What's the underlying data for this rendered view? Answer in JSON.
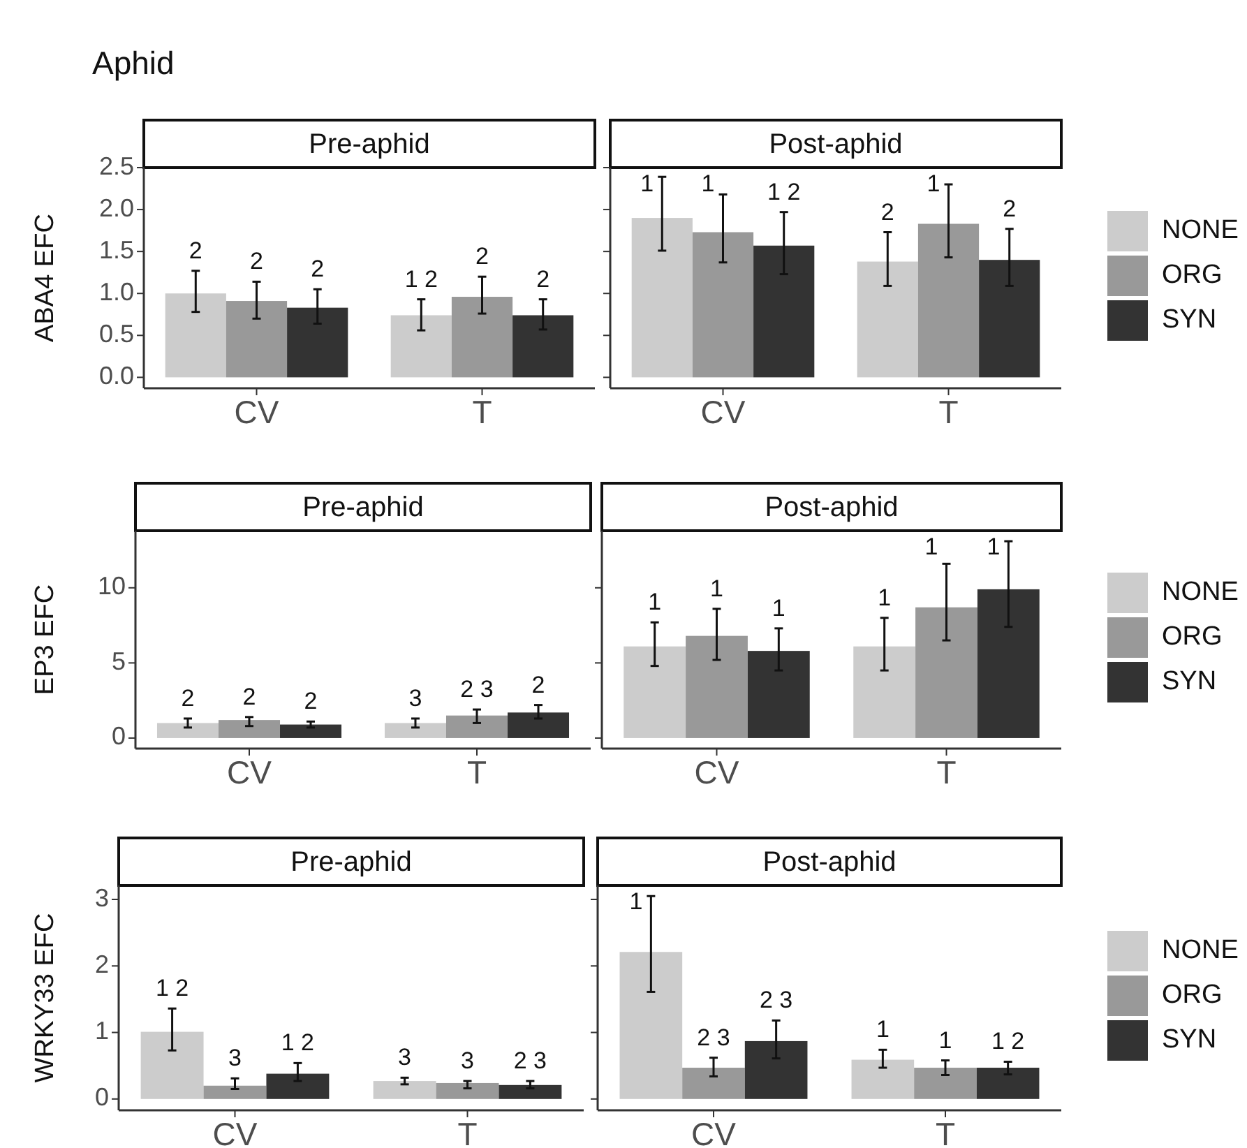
{
  "chart_data": [
    {
      "type": "bar",
      "title": "Aphid",
      "subtitle": "Pre-aphid",
      "ylabel": "ABA4 EFC",
      "categories": [
        "CV",
        "T"
      ],
      "ylim": [
        -0.13,
        2.5
      ],
      "yticks": [
        {
          "value": 0,
          "label": "0.0"
        },
        {
          "value": 0.5,
          "label": "0.5"
        },
        {
          "value": 1,
          "label": "1.0"
        },
        {
          "value": 1.5,
          "label": "1.5"
        },
        {
          "value": 2,
          "label": "2.0"
        },
        {
          "value": 2.5,
          "label": "2.5"
        }
      ],
      "legend": false,
      "series": [
        {
          "color": "#cccccc",
          "values": [
            1.0,
            0.74
          ],
          "errors": [
            [
              0.78,
              1.27
            ],
            [
              0.56,
              0.93
            ]
          ]
        },
        {
          "color": "#999999",
          "values": [
            0.91,
            0.96
          ],
          "errors": [
            [
              0.7,
              1.14
            ],
            [
              0.76,
              1.2
            ]
          ]
        },
        {
          "color": "#333333",
          "values": [
            0.83,
            0.74
          ],
          "errors": [
            [
              0.64,
              1.05
            ],
            [
              0.57,
              0.93
            ]
          ]
        }
      ],
      "annotations": [
        "2",
        "2",
        "2",
        "1 2",
        "2",
        "2"
      ]
    },
    {
      "type": "bar",
      "subtitle": "Post-aphid",
      "categories": [
        "CV",
        "T"
      ],
      "ylim": [
        -0.13,
        2.5
      ],
      "yticks": [
        {
          "value": 0,
          "label": null
        },
        {
          "value": 0.5,
          "label": null
        },
        {
          "value": 1,
          "label": null
        },
        {
          "value": 1.5,
          "label": null
        },
        {
          "value": 2,
          "label": null
        },
        {
          "value": 2.5,
          "label": null
        }
      ],
      "tick_labels": "x",
      "legend": "right",
      "series": [
        {
          "name": "NONE",
          "color": "#cccccc",
          "values": [
            1.9,
            1.38
          ],
          "errors": [
            [
              1.51,
              2.39
            ],
            [
              1.09,
              1.73
            ]
          ]
        },
        {
          "name": "ORG",
          "color": "#999999",
          "values": [
            1.73,
            1.83
          ],
          "errors": [
            [
              1.37,
              2.18
            ],
            [
              1.43,
              2.3
            ]
          ]
        },
        {
          "name": "SYN",
          "color": "#333333",
          "values": [
            1.57,
            1.4
          ],
          "errors": [
            [
              1.23,
              1.97
            ],
            [
              1.09,
              1.77
            ]
          ]
        }
      ],
      "annotations": [
        "1",
        "1",
        "1 2",
        "2",
        "1",
        "2"
      ]
    },
    {
      "type": "bar",
      "subtitle": "Pre-aphid",
      "ylabel": "EP3 EFC",
      "categories": [
        "CV",
        "T"
      ],
      "ylim": [
        -0.7,
        13.8
      ],
      "yticks": [
        0,
        5,
        10
      ],
      "legend": false,
      "series": [
        {
          "color": "#cccccc",
          "values": [
            1.0,
            1.0
          ],
          "errors": [
            [
              0.7,
              1.3
            ],
            [
              0.7,
              1.3
            ]
          ]
        },
        {
          "color": "#999999",
          "values": [
            1.2,
            1.5
          ],
          "errors": [
            [
              0.8,
              1.4
            ],
            [
              1.0,
              1.9
            ]
          ]
        },
        {
          "color": "#333333",
          "values": [
            0.9,
            1.7
          ],
          "errors": [
            [
              0.7,
              1.1
            ],
            [
              1.3,
              2.2
            ]
          ]
        }
      ],
      "annotations": [
        "2",
        "2",
        "2",
        "3",
        "2 3",
        "2"
      ]
    },
    {
      "type": "bar",
      "subtitle": "Post-aphid",
      "categories": [
        "CV",
        "T"
      ],
      "ylim": [
        -0.7,
        13.8
      ],
      "yticks": [
        0,
        5,
        10
      ],
      "tick_labels": "x",
      "legend": "right",
      "series": [
        {
          "name": "NONE",
          "color": "#cccccc",
          "values": [
            6.1,
            6.1
          ],
          "errors": [
            [
              4.8,
              7.7
            ],
            [
              4.5,
              8.0
            ]
          ]
        },
        {
          "name": "ORG",
          "color": "#999999",
          "values": [
            6.8,
            8.7
          ],
          "errors": [
            [
              5.2,
              8.6
            ],
            [
              6.5,
              11.6
            ]
          ]
        },
        {
          "name": "SYN",
          "color": "#333333",
          "values": [
            5.8,
            9.9
          ],
          "errors": [
            [
              4.5,
              7.3
            ],
            [
              7.4,
              13.1
            ]
          ]
        }
      ],
      "annotations": [
        "1",
        "1",
        "1",
        "1",
        "1",
        "1"
      ]
    },
    {
      "type": "bar",
      "subtitle": "Pre-aphid",
      "ylabel": "WRKY33 EFC",
      "categories": [
        "CV",
        "T"
      ],
      "ylim": [
        -0.17,
        3.21
      ],
      "yticks": [
        0,
        1,
        2,
        3
      ],
      "legend": false,
      "series": [
        {
          "color": "#cccccc",
          "values": [
            1.01,
            0.27
          ],
          "errors": [
            [
              0.73,
              1.36
            ],
            [
              0.22,
              0.32
            ]
          ]
        },
        {
          "color": "#999999",
          "values": [
            0.2,
            0.24
          ],
          "errors": [
            [
              0.15,
              0.31
            ],
            [
              0.16,
              0.27
            ]
          ]
        },
        {
          "color": "#333333",
          "values": [
            0.38,
            0.21
          ],
          "errors": [
            [
              0.27,
              0.54
            ],
            [
              0.16,
              0.27
            ]
          ]
        }
      ],
      "annotations": [
        "1 2",
        "3",
        "1 2",
        "3",
        "3",
        "2 3"
      ]
    },
    {
      "type": "bar",
      "subtitle": "Post-aphid",
      "categories": [
        "CV",
        "T"
      ],
      "ylim": [
        -0.17,
        3.21
      ],
      "yticks": [
        0,
        1,
        2,
        3
      ],
      "tick_labels": "x",
      "legend": "right",
      "series": [
        {
          "name": "NONE",
          "color": "#cccccc",
          "values": [
            2.21,
            0.59
          ],
          "errors": [
            [
              1.61,
              3.05
            ],
            [
              0.47,
              0.74
            ]
          ]
        },
        {
          "name": "ORG",
          "color": "#999999",
          "values": [
            0.47,
            0.47
          ],
          "errors": [
            [
              0.34,
              0.62
            ],
            [
              0.36,
              0.58
            ]
          ]
        },
        {
          "name": "SYN",
          "color": "#333333",
          "values": [
            0.87,
            0.47
          ],
          "errors": [
            [
              0.61,
              1.18
            ],
            [
              0.37,
              0.56
            ]
          ]
        }
      ],
      "annotations": [
        "1",
        "2 3",
        "2 3",
        "1",
        "1",
        "1 2"
      ]
    }
  ]
}
